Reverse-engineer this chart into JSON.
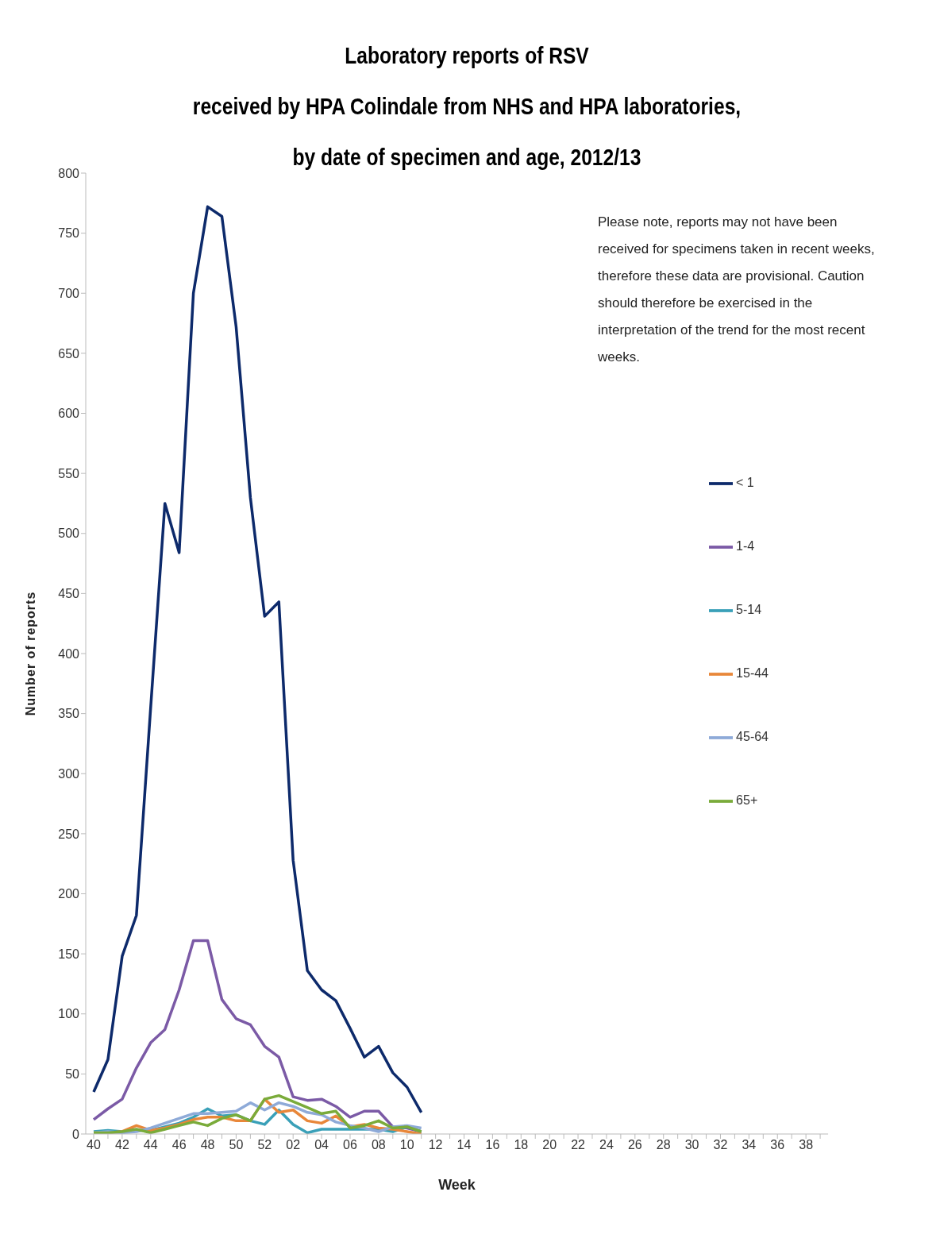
{
  "chart_data": {
    "type": "line",
    "title": "Laboratory reports of RSV\nreceived by HPA Colindale from NHS and HPA laboratories,\nby date of specimen and age, 2012/13",
    "xlabel": "Week",
    "ylabel": "Number of reports",
    "annotations": [
      "Please note, reports may not have been received for specimens taken in recent weeks, therefore these data are provisional. Caution should therefore be exercised in the interpretation of the trend for the most recent weeks."
    ],
    "categories": [
      "40",
      null,
      "42",
      null,
      "44",
      null,
      "46",
      null,
      "48",
      null,
      "50",
      null,
      "52",
      null,
      "02",
      null,
      "04",
      null,
      "06",
      null,
      "08",
      null,
      "10",
      null,
      "12",
      null,
      "14",
      null,
      "16",
      null,
      "18",
      null,
      "20",
      null,
      "22",
      null,
      "24",
      null,
      "26",
      null,
      "28",
      null,
      "30",
      null,
      "32",
      null,
      "34",
      null,
      "36",
      null,
      "38",
      null
    ],
    "series": [
      {
        "name": "< 1",
        "color": "#0d2a6b",
        "values": [
          35,
          62,
          148,
          182,
          355,
          525,
          484,
          700,
          772,
          764,
          672,
          530,
          431,
          443,
          228,
          136,
          120,
          111,
          88,
          64,
          73,
          51,
          39,
          18,
          null,
          null,
          null,
          null,
          null,
          null,
          null,
          null,
          null,
          null,
          null,
          null,
          null,
          null,
          null,
          null,
          null,
          null,
          null,
          null,
          null,
          null,
          null,
          null,
          null,
          null,
          null,
          null
        ]
      },
      {
        "name": "1-4",
        "color": "#7b5aa6",
        "values": [
          12,
          21,
          29,
          55,
          76,
          87,
          120,
          161,
          161,
          112,
          96,
          91,
          73,
          64,
          31,
          28,
          29,
          23,
          14,
          19,
          19,
          6,
          5,
          2,
          null,
          null,
          null,
          null,
          null,
          null,
          null,
          null,
          null,
          null,
          null,
          null,
          null,
          null,
          null,
          null,
          null,
          null,
          null,
          null,
          null,
          null,
          null,
          null,
          null,
          null,
          null,
          null
        ]
      },
      {
        "name": "5-14",
        "color": "#3aa0b8",
        "values": [
          2,
          3,
          2,
          3,
          3,
          6,
          9,
          14,
          21,
          15,
          16,
          11,
          8,
          20,
          8,
          1,
          4,
          4,
          4,
          4,
          4,
          2,
          6,
          2,
          null,
          null,
          null,
          null,
          null,
          null,
          null,
          null,
          null,
          null,
          null,
          null,
          null,
          null,
          null,
          null,
          null,
          null,
          null,
          null,
          null,
          null,
          null,
          null,
          null,
          null,
          null,
          null
        ]
      },
      {
        "name": "15-44",
        "color": "#e8873a",
        "values": [
          1,
          1,
          2,
          7,
          3,
          5,
          8,
          12,
          14,
          14,
          11,
          11,
          29,
          18,
          20,
          11,
          9,
          15,
          6,
          8,
          5,
          4,
          2,
          0,
          null,
          null,
          null,
          null,
          null,
          null,
          null,
          null,
          null,
          null,
          null,
          null,
          null,
          null,
          null,
          null,
          null,
          null,
          null,
          null,
          null,
          null,
          null,
          null,
          null,
          null,
          null,
          null
        ]
      },
      {
        "name": "45-64",
        "color": "#8eaad8",
        "values": [
          1,
          2,
          1,
          2,
          5,
          9,
          13,
          17,
          17,
          18,
          19,
          26,
          20,
          26,
          23,
          18,
          16,
          10,
          7,
          5,
          2,
          6,
          7,
          5,
          null,
          null,
          null,
          null,
          null,
          null,
          null,
          null,
          null,
          null,
          null,
          null,
          null,
          null,
          null,
          null,
          null,
          null,
          null,
          null,
          null,
          null,
          null,
          null,
          null,
          null,
          null,
          null
        ]
      },
      {
        "name": "65+",
        "color": "#7aab3a",
        "values": [
          1,
          1,
          2,
          4,
          1,
          4,
          7,
          10,
          7,
          13,
          16,
          11,
          29,
          32,
          27,
          22,
          17,
          19,
          5,
          7,
          11,
          5,
          6,
          2,
          null,
          null,
          null,
          null,
          null,
          null,
          null,
          null,
          null,
          null,
          null,
          null,
          null,
          null,
          null,
          null,
          null,
          null,
          null,
          null,
          null,
          null,
          null,
          null,
          null,
          null,
          null,
          null
        ]
      }
    ],
    "ylim": [
      0,
      800
    ],
    "yticks": [
      0,
      50,
      100,
      150,
      200,
      250,
      300,
      350,
      400,
      450,
      500,
      550,
      600,
      650,
      700,
      750,
      800
    ],
    "grid": false,
    "legend": "right",
    "marker": "none",
    "line_style": "solid"
  }
}
